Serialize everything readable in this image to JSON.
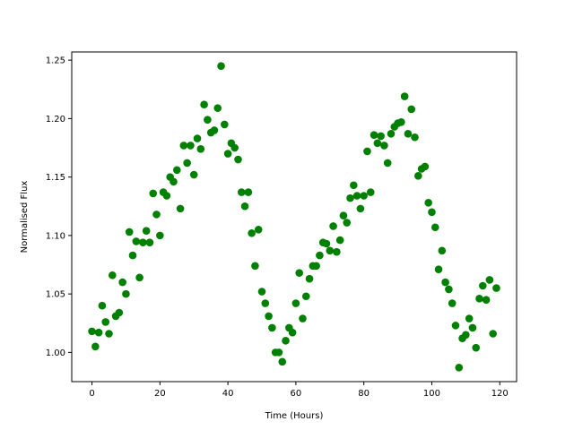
{
  "chart_data": {
    "type": "scatter",
    "xlabel": "Time (Hours)",
    "ylabel": "Normalised Flux",
    "color": "#008000",
    "x": [
      0,
      1,
      2,
      3,
      4,
      5,
      6,
      7,
      8,
      9,
      10,
      11,
      12,
      13,
      14,
      15,
      16,
      17,
      18,
      19,
      20,
      21,
      22,
      23,
      24,
      25,
      26,
      27,
      28,
      29,
      30,
      31,
      32,
      33,
      34,
      35,
      36,
      37,
      38,
      39,
      40,
      41,
      42,
      43,
      44,
      45,
      46,
      47,
      48,
      49,
      50,
      51,
      52,
      53,
      54,
      55,
      56,
      57,
      58,
      59,
      60,
      61,
      62,
      63,
      64,
      65,
      66,
      67,
      68,
      69,
      70,
      71,
      72,
      73,
      74,
      75,
      76,
      77,
      78,
      79,
      80,
      81,
      82,
      83,
      84,
      85,
      86,
      87,
      88,
      89,
      90,
      91,
      92,
      93,
      94,
      95,
      96,
      97,
      98,
      99,
      100,
      101,
      102,
      103,
      104,
      105,
      106,
      107,
      108,
      109,
      110,
      111,
      112,
      113,
      114,
      115,
      116,
      117,
      118,
      119
    ],
    "values": [
      1.018,
      1.005,
      1.017,
      1.04,
      1.026,
      1.016,
      1.066,
      1.031,
      1.034,
      1.06,
      1.05,
      1.103,
      1.083,
      1.095,
      1.064,
      1.094,
      1.104,
      1.094,
      1.136,
      1.118,
      1.1,
      1.137,
      1.134,
      1.15,
      1.146,
      1.156,
      1.123,
      1.177,
      1.162,
      1.177,
      1.152,
      1.183,
      1.174,
      1.212,
      1.199,
      1.188,
      1.19,
      1.209,
      1.245,
      1.195,
      1.17,
      1.179,
      1.175,
      1.165,
      1.137,
      1.125,
      1.137,
      1.102,
      1.074,
      1.105,
      1.052,
      1.042,
      1.031,
      1.021,
      1.0,
      1.0,
      0.992,
      1.01,
      1.021,
      1.017,
      1.042,
      1.068,
      1.029,
      1.048,
      1.063,
      1.074,
      1.074,
      1.083,
      1.094,
      1.093,
      1.087,
      1.108,
      1.086,
      1.096,
      1.117,
      1.111,
      1.132,
      1.143,
      1.134,
      1.123,
      1.134,
      1.172,
      1.137,
      1.186,
      1.179,
      1.185,
      1.177,
      1.162,
      1.187,
      1.193,
      1.196,
      1.197,
      1.219,
      1.187,
      1.208,
      1.184,
      1.151,
      1.157,
      1.159,
      1.128,
      1.12,
      1.107,
      1.071,
      1.087,
      1.06,
      1.054,
      1.042,
      1.023,
      0.987,
      1.012,
      1.015,
      1.029,
      1.021,
      1.004,
      1.046,
      1.057,
      1.045,
      1.062,
      1.016,
      1.055
    ],
    "xlim": [
      -5.95,
      124.95
    ],
    "ylim": [
      0.975,
      1.257
    ],
    "xticks": [
      0,
      20,
      40,
      60,
      80,
      100,
      120
    ],
    "yticks": [
      {
        "value": 1.0,
        "label": "1.00"
      },
      {
        "value": 1.05,
        "label": "1.05"
      },
      {
        "value": 1.1,
        "label": "1.10"
      },
      {
        "value": 1.15,
        "label": "1.15"
      },
      {
        "value": 1.2,
        "label": "1.20"
      },
      {
        "value": 1.25,
        "label": "1.25"
      }
    ]
  }
}
